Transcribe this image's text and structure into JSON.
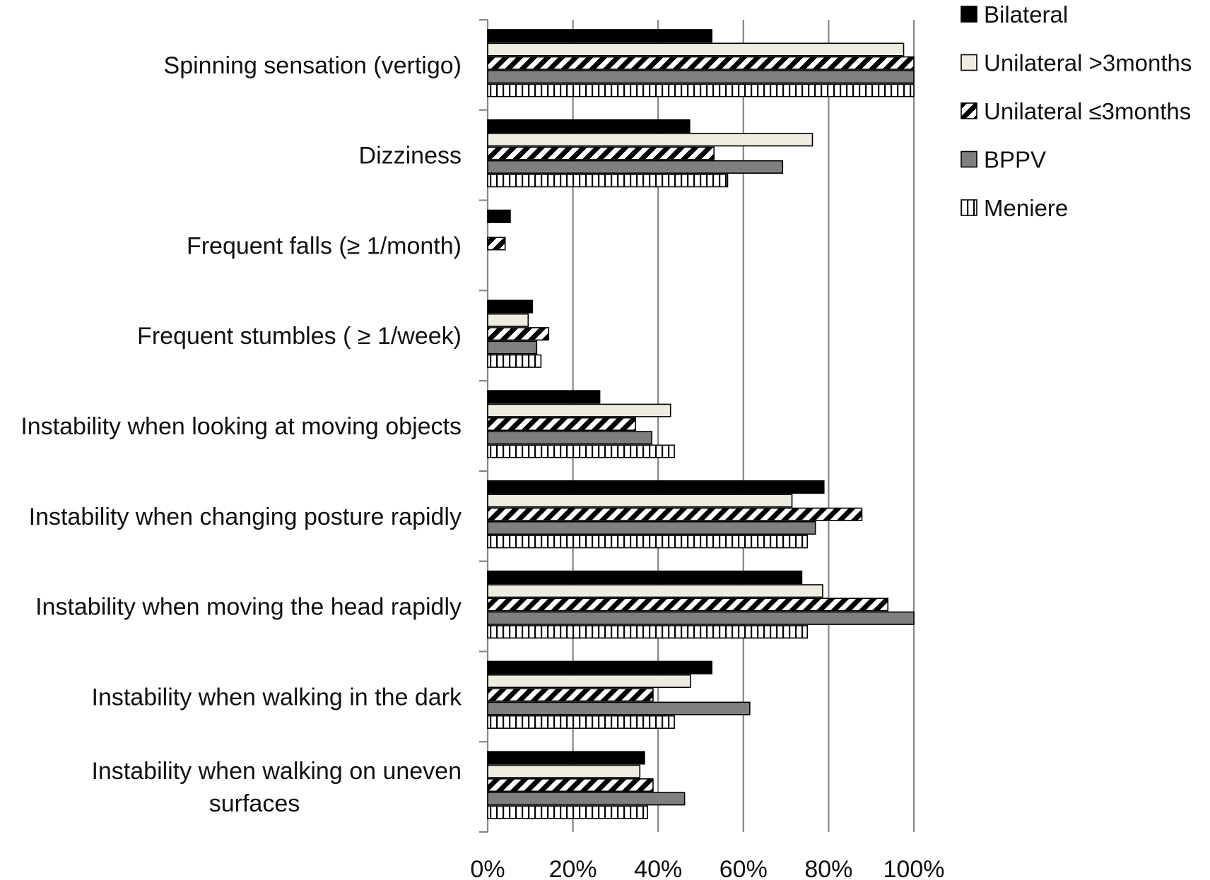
{
  "chart_data": {
    "type": "bar",
    "orientation": "horizontal",
    "title": "",
    "xlabel": "",
    "ylabel": "",
    "xlim": [
      0,
      100
    ],
    "x_ticks": [
      "0%",
      "20%",
      "40%",
      "60%",
      "80%",
      "100%"
    ],
    "grid": true,
    "legend_position": "top-right",
    "categories": [
      [
        "Spinning sensation (vertigo)"
      ],
      [
        "Dizziness"
      ],
      [
        "Frequent falls (≥ 1/month)"
      ],
      [
        "Frequent stumbles ( ≥ 1/week)"
      ],
      [
        "Instability when looking at moving objects"
      ],
      [
        "Instability when changing posture rapidly"
      ],
      [
        "Instability when moving the head rapidly"
      ],
      [
        "Instability when walking in the dark"
      ],
      [
        "Instability when walking on uneven",
        "surfaces"
      ]
    ],
    "series": [
      {
        "name": "Bilateral",
        "style": "solid-black",
        "values": [
          52.6,
          47.4,
          5.3,
          10.5,
          26.3,
          78.9,
          73.7,
          52.6,
          36.8
        ]
      },
      {
        "name": "Unilateral >3months",
        "style": "cream",
        "values": [
          97.6,
          76.2,
          0,
          9.5,
          42.9,
          71.4,
          78.6,
          47.6,
          35.7
        ]
      },
      {
        "name": "Unilateral ≤3months",
        "style": "diagonal-hatch",
        "values": [
          100,
          53.1,
          4.1,
          14.3,
          34.7,
          87.8,
          93.9,
          38.8,
          38.8
        ]
      },
      {
        "name": "BPPV",
        "style": "solid-gray",
        "values": [
          100,
          69.2,
          0,
          11.5,
          38.5,
          76.9,
          100,
          61.5,
          46.2
        ]
      },
      {
        "name": "Meniere",
        "style": "vertical-hatch",
        "values": [
          100,
          56.3,
          0,
          12.5,
          43.8,
          75.0,
          75.0,
          43.8,
          37.5
        ]
      }
    ]
  }
}
